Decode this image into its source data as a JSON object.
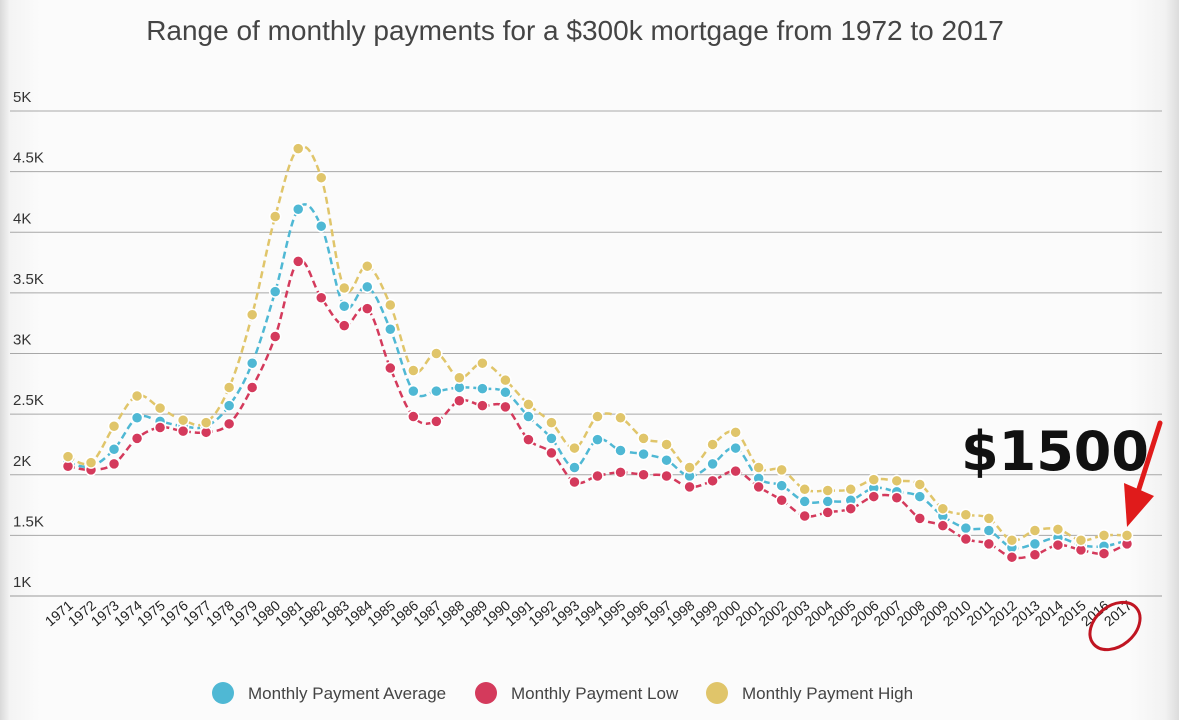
{
  "chart_data": {
    "type": "line",
    "title": "Range of monthly payments for a $300k mortgage from 1972 to 2017",
    "x": [
      "1971",
      "1972",
      "1973",
      "1974",
      "1975",
      "1976",
      "1977",
      "1978",
      "1979",
      "1980",
      "1981",
      "1982",
      "1983",
      "1984",
      "1985",
      "1986",
      "1987",
      "1988",
      "1989",
      "1990",
      "1991",
      "1992",
      "1993",
      "1994",
      "1995",
      "1996",
      "1997",
      "1998",
      "1999",
      "2000",
      "2001",
      "2002",
      "2003",
      "2004",
      "2005",
      "2006",
      "2007",
      "2008",
      "2009",
      "2010",
      "2011",
      "2012",
      "2013",
      "2014",
      "2015",
      "2016",
      "2017"
    ],
    "ylim": [
      1000,
      5000
    ],
    "yticks": [
      1000,
      1500,
      2000,
      2500,
      3000,
      3500,
      4000,
      4500,
      5000
    ],
    "ytick_labels": [
      "1K",
      "1.5K",
      "2K",
      "2.5K",
      "3K",
      "3.5K",
      "4K",
      "4.5K",
      "5K"
    ],
    "grid": true,
    "legend_position": "bottom",
    "series": [
      {
        "name": "Monthly Payment Average",
        "color": "#4fb8d4",
        "values": [
          2100,
          2070,
          2210,
          2470,
          2440,
          2400,
          2400,
          2570,
          2920,
          3510,
          4190,
          4050,
          3390,
          3550,
          3200,
          2690,
          2690,
          2720,
          2710,
          2680,
          2480,
          2300,
          2060,
          2290,
          2200,
          2170,
          2120,
          1990,
          2090,
          2220,
          1970,
          1910,
          1780,
          1780,
          1790,
          1890,
          1860,
          1820,
          1660,
          1560,
          1540,
          1400,
          1430,
          1480,
          1420,
          1410,
          1460
        ]
      },
      {
        "name": "Monthly Payment Low",
        "color": "#d43a5c",
        "values": [
          2070,
          2040,
          2090,
          2300,
          2390,
          2360,
          2350,
          2420,
          2720,
          3140,
          3760,
          3460,
          3230,
          3370,
          2880,
          2480,
          2440,
          2610,
          2570,
          2560,
          2290,
          2180,
          1940,
          1990,
          2020,
          2000,
          1990,
          1900,
          1950,
          2030,
          1900,
          1790,
          1660,
          1690,
          1720,
          1820,
          1810,
          1640,
          1580,
          1470,
          1430,
          1320,
          1340,
          1420,
          1380,
          1350,
          1430
        ]
      },
      {
        "name": "Monthly Payment High",
        "color": "#e0c56a",
        "values": [
          2150,
          2100,
          2400,
          2650,
          2550,
          2450,
          2430,
          2720,
          3320,
          4130,
          4690,
          4450,
          3540,
          3720,
          3400,
          2860,
          3000,
          2800,
          2920,
          2780,
          2580,
          2430,
          2220,
          2480,
          2470,
          2300,
          2250,
          2060,
          2250,
          2350,
          2060,
          2040,
          1880,
          1870,
          1880,
          1960,
          1950,
          1920,
          1720,
          1670,
          1640,
          1460,
          1540,
          1550,
          1460,
          1500,
          1500
        ]
      }
    ],
    "annotation": {
      "text": "$1500",
      "target_x": "2017",
      "arrow_color": "#e01b1b"
    }
  }
}
